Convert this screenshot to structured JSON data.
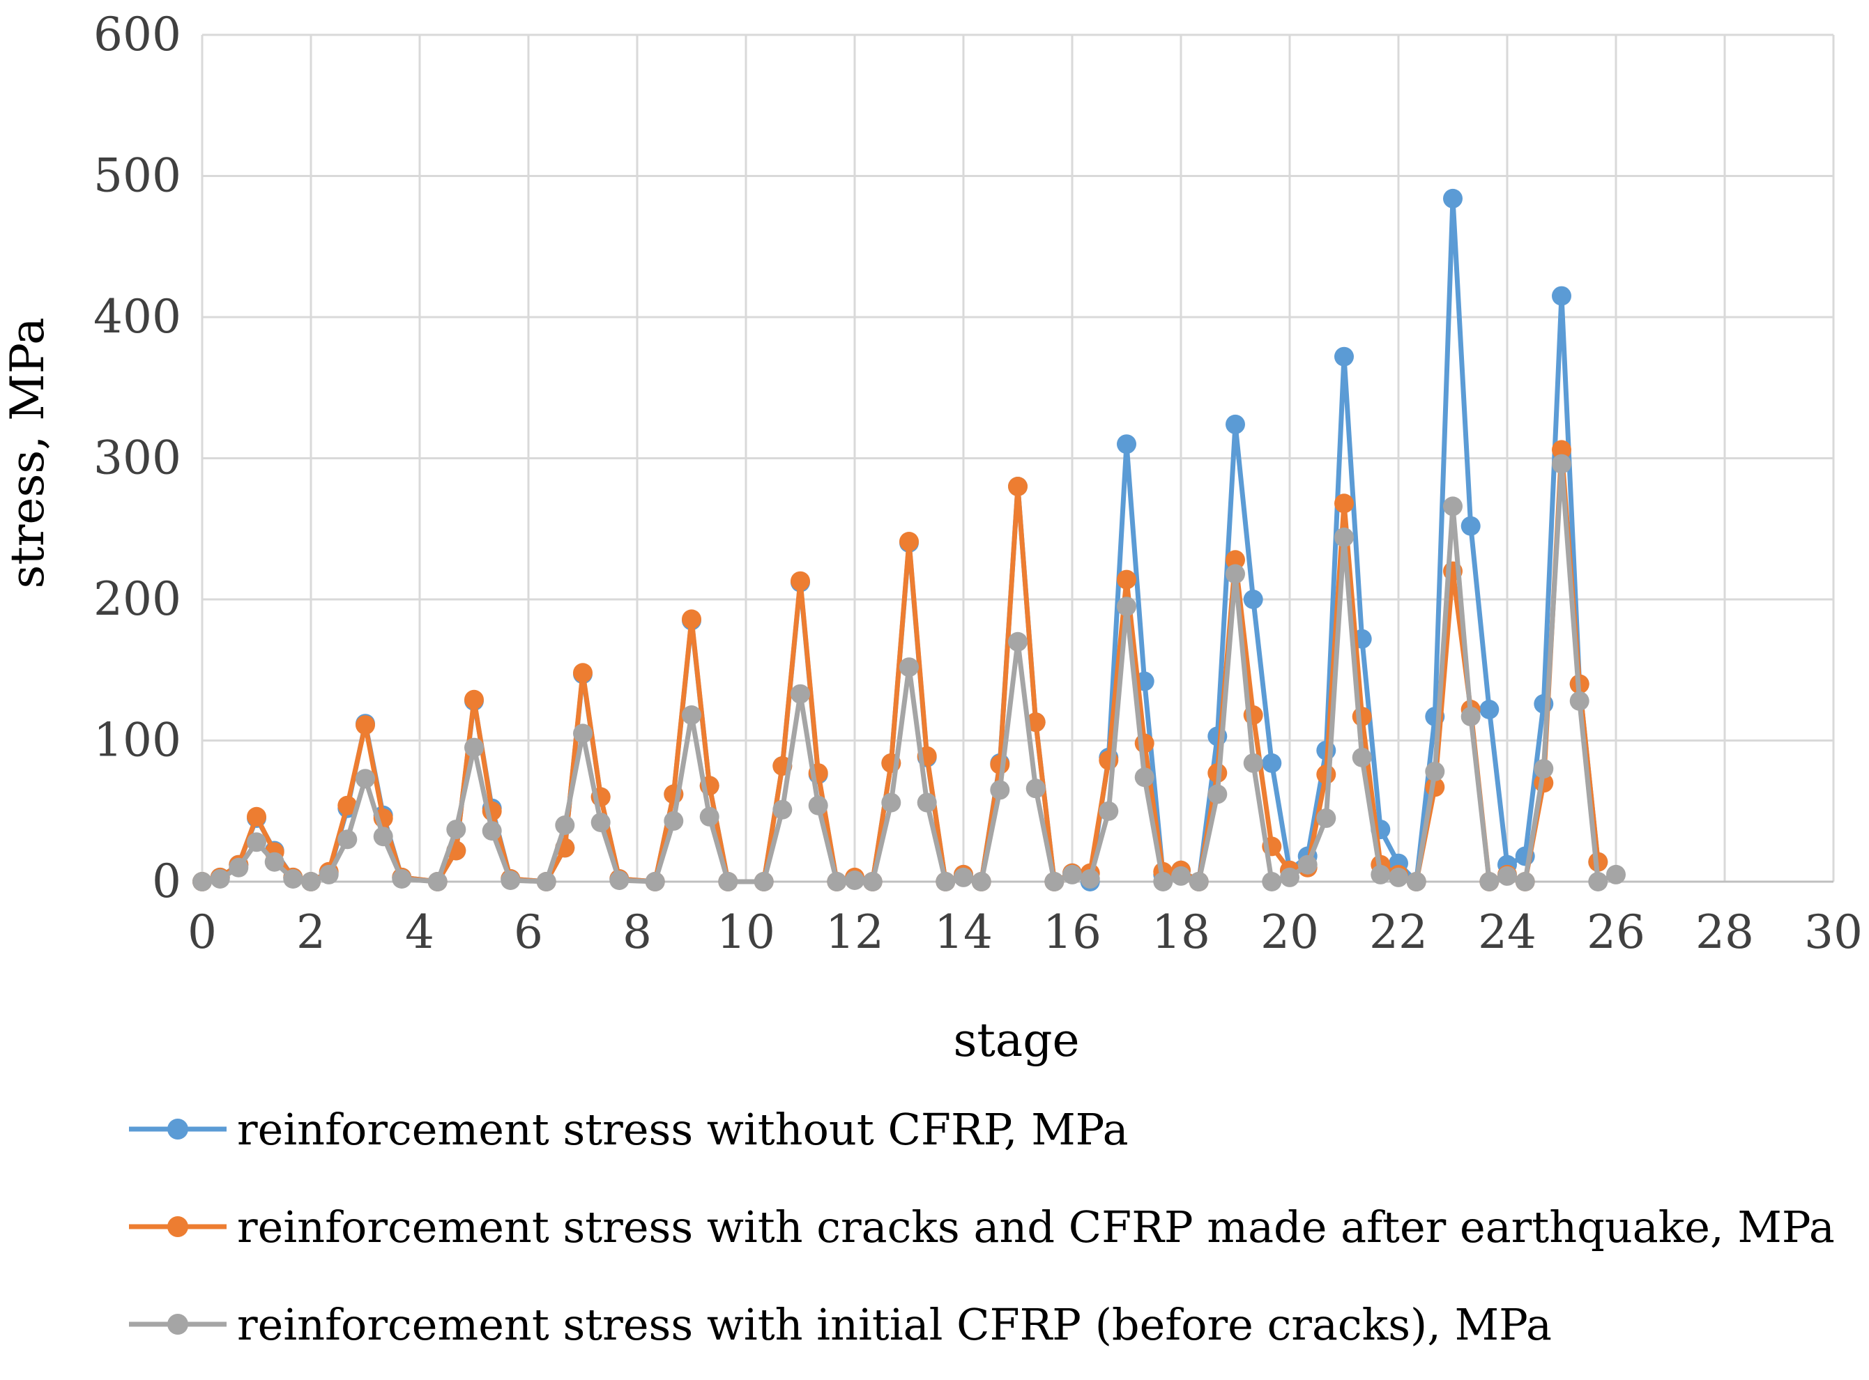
{
  "chart_data": {
    "type": "line",
    "title": "",
    "xlabel": "stage",
    "ylabel": "stress, MPa",
    "xlim": [
      0,
      30
    ],
    "ylim": [
      0,
      600
    ],
    "xticks": [
      0,
      2,
      4,
      6,
      8,
      10,
      12,
      14,
      16,
      18,
      20,
      22,
      24,
      26,
      28,
      30
    ],
    "yticks": [
      0,
      100,
      200,
      300,
      400,
      500,
      600
    ],
    "grid": true,
    "legend_position": "bottom",
    "series": [
      {
        "name": "reinforcement stress without CFRP, MPa",
        "color": "#5B9BD5",
        "points": [
          [
            0,
            0
          ],
          [
            0.33,
            3
          ],
          [
            0.67,
            12
          ],
          [
            1,
            45
          ],
          [
            1.33,
            22
          ],
          [
            1.67,
            3
          ],
          [
            2,
            0
          ],
          [
            2.33,
            6
          ],
          [
            2.67,
            52
          ],
          [
            3,
            112
          ],
          [
            3.33,
            47
          ],
          [
            3.67,
            3
          ],
          [
            4.33,
            0
          ],
          [
            4.67,
            22
          ],
          [
            5,
            128
          ],
          [
            5.33,
            52
          ],
          [
            5.67,
            2
          ],
          [
            6.33,
            0
          ],
          [
            6.67,
            24
          ],
          [
            7,
            147
          ],
          [
            7.33,
            60
          ],
          [
            7.67,
            2
          ],
          [
            8.33,
            0
          ],
          [
            8.67,
            62
          ],
          [
            9,
            185
          ],
          [
            9.33,
            68
          ],
          [
            9.67,
            0
          ],
          [
            10.33,
            0
          ],
          [
            10.67,
            82
          ],
          [
            11,
            212
          ],
          [
            11.33,
            76
          ],
          [
            11.67,
            0
          ],
          [
            12,
            2
          ],
          [
            12.33,
            0
          ],
          [
            12.67,
            84
          ],
          [
            13,
            240
          ],
          [
            13.33,
            88
          ],
          [
            13.67,
            0
          ],
          [
            14,
            5
          ],
          [
            14.33,
            0
          ],
          [
            14.67,
            84
          ],
          [
            15,
            280
          ],
          [
            15.33,
            113
          ],
          [
            15.67,
            0
          ],
          [
            16,
            6
          ],
          [
            16.33,
            0
          ],
          [
            16.67,
            88
          ],
          [
            17,
            310
          ],
          [
            17.33,
            142
          ],
          [
            17.67,
            5
          ],
          [
            18,
            8
          ],
          [
            18.33,
            0
          ],
          [
            18.67,
            103
          ],
          [
            19,
            324
          ],
          [
            19.33,
            200
          ],
          [
            19.67,
            84
          ],
          [
            20,
            8
          ],
          [
            20.33,
            18
          ],
          [
            20.67,
            93
          ],
          [
            21,
            372
          ],
          [
            21.33,
            172
          ],
          [
            21.67,
            37
          ],
          [
            22,
            13
          ],
          [
            22.33,
            0
          ],
          [
            22.67,
            117
          ],
          [
            23,
            484
          ],
          [
            23.33,
            252
          ],
          [
            23.67,
            122
          ],
          [
            24,
            12
          ],
          [
            24.33,
            18
          ],
          [
            24.67,
            126
          ],
          [
            25,
            415
          ],
          [
            25.33,
            140
          ],
          [
            25.67,
            14
          ]
        ]
      },
      {
        "name": "reinforcement stress with cracks and CFRP made after earthquake, MPa",
        "color": "#ED7D31",
        "points": [
          [
            0,
            0
          ],
          [
            0.33,
            3
          ],
          [
            0.67,
            12
          ],
          [
            1,
            46
          ],
          [
            1.33,
            21
          ],
          [
            1.67,
            3
          ],
          [
            2,
            0
          ],
          [
            2.33,
            7
          ],
          [
            2.67,
            54
          ],
          [
            3,
            111
          ],
          [
            3.33,
            45
          ],
          [
            3.67,
            3
          ],
          [
            4.33,
            0
          ],
          [
            4.67,
            22
          ],
          [
            5,
            129
          ],
          [
            5.33,
            50
          ],
          [
            5.67,
            2
          ],
          [
            6.33,
            0
          ],
          [
            6.67,
            24
          ],
          [
            7,
            148
          ],
          [
            7.33,
            60
          ],
          [
            7.67,
            2
          ],
          [
            8.33,
            0
          ],
          [
            8.67,
            62
          ],
          [
            9,
            186
          ],
          [
            9.33,
            68
          ],
          [
            9.67,
            0
          ],
          [
            10.33,
            0
          ],
          [
            10.67,
            82
          ],
          [
            11,
            213
          ],
          [
            11.33,
            77
          ],
          [
            11.67,
            0
          ],
          [
            12,
            3
          ],
          [
            12.33,
            0
          ],
          [
            12.67,
            84
          ],
          [
            13,
            241
          ],
          [
            13.33,
            89
          ],
          [
            13.67,
            0
          ],
          [
            14,
            5
          ],
          [
            14.33,
            0
          ],
          [
            14.67,
            83
          ],
          [
            15,
            280
          ],
          [
            15.33,
            113
          ],
          [
            15.67,
            0
          ],
          [
            16,
            6
          ],
          [
            16.33,
            6
          ],
          [
            16.67,
            86
          ],
          [
            17,
            214
          ],
          [
            17.33,
            98
          ],
          [
            17.67,
            7
          ],
          [
            18,
            8
          ],
          [
            18.33,
            0
          ],
          [
            18.67,
            77
          ],
          [
            19,
            228
          ],
          [
            19.33,
            118
          ],
          [
            19.67,
            25
          ],
          [
            20,
            8
          ],
          [
            20.33,
            10
          ],
          [
            20.67,
            76
          ],
          [
            21,
            268
          ],
          [
            21.33,
            117
          ],
          [
            21.67,
            12
          ],
          [
            22,
            5
          ],
          [
            22.33,
            0
          ],
          [
            22.67,
            67
          ],
          [
            23,
            220
          ],
          [
            23.33,
            122
          ],
          [
            23.67,
            0
          ],
          [
            24,
            5
          ],
          [
            24.33,
            0
          ],
          [
            24.67,
            70
          ],
          [
            25,
            306
          ],
          [
            25.33,
            140
          ],
          [
            25.67,
            14
          ]
        ]
      },
      {
        "name": "reinforcement stress with initial CFRP (before cracks), MPa",
        "color": "#A5A5A5",
        "points": [
          [
            0,
            0
          ],
          [
            0.33,
            2
          ],
          [
            0.67,
            10
          ],
          [
            1,
            28
          ],
          [
            1.33,
            14
          ],
          [
            1.67,
            2
          ],
          [
            2,
            0
          ],
          [
            2.33,
            5
          ],
          [
            2.67,
            30
          ],
          [
            3,
            73
          ],
          [
            3.33,
            32
          ],
          [
            3.67,
            2
          ],
          [
            4.33,
            0
          ],
          [
            4.67,
            37
          ],
          [
            5,
            95
          ],
          [
            5.33,
            36
          ],
          [
            5.67,
            1
          ],
          [
            6.33,
            0
          ],
          [
            6.67,
            40
          ],
          [
            7,
            105
          ],
          [
            7.33,
            42
          ],
          [
            7.67,
            1
          ],
          [
            8.33,
            0
          ],
          [
            8.67,
            43
          ],
          [
            9,
            118
          ],
          [
            9.33,
            46
          ],
          [
            9.67,
            0
          ],
          [
            10.33,
            0
          ],
          [
            10.67,
            51
          ],
          [
            11,
            133
          ],
          [
            11.33,
            54
          ],
          [
            11.67,
            0
          ],
          [
            12,
            1
          ],
          [
            12.33,
            0
          ],
          [
            12.67,
            56
          ],
          [
            13,
            152
          ],
          [
            13.33,
            56
          ],
          [
            13.67,
            0
          ],
          [
            14,
            3
          ],
          [
            14.33,
            0
          ],
          [
            14.67,
            65
          ],
          [
            15,
            170
          ],
          [
            15.33,
            66
          ],
          [
            15.67,
            0
          ],
          [
            16,
            5
          ],
          [
            16.33,
            2
          ],
          [
            16.67,
            50
          ],
          [
            17,
            195
          ],
          [
            17.33,
            74
          ],
          [
            17.67,
            0
          ],
          [
            18,
            4
          ],
          [
            18.33,
            0
          ],
          [
            18.67,
            62
          ],
          [
            19,
            218
          ],
          [
            19.33,
            84
          ],
          [
            19.67,
            0
          ],
          [
            20,
            3
          ],
          [
            20.33,
            12
          ],
          [
            20.67,
            45
          ],
          [
            21,
            244
          ],
          [
            21.33,
            88
          ],
          [
            21.67,
            5
          ],
          [
            22,
            3
          ],
          [
            22.33,
            0
          ],
          [
            22.67,
            78
          ],
          [
            23,
            266
          ],
          [
            23.33,
            117
          ],
          [
            23.67,
            0
          ],
          [
            24,
            4
          ],
          [
            24.33,
            0
          ],
          [
            24.67,
            80
          ],
          [
            25,
            296
          ],
          [
            25.33,
            128
          ],
          [
            25.67,
            0
          ],
          [
            26,
            5
          ]
        ]
      }
    ]
  }
}
